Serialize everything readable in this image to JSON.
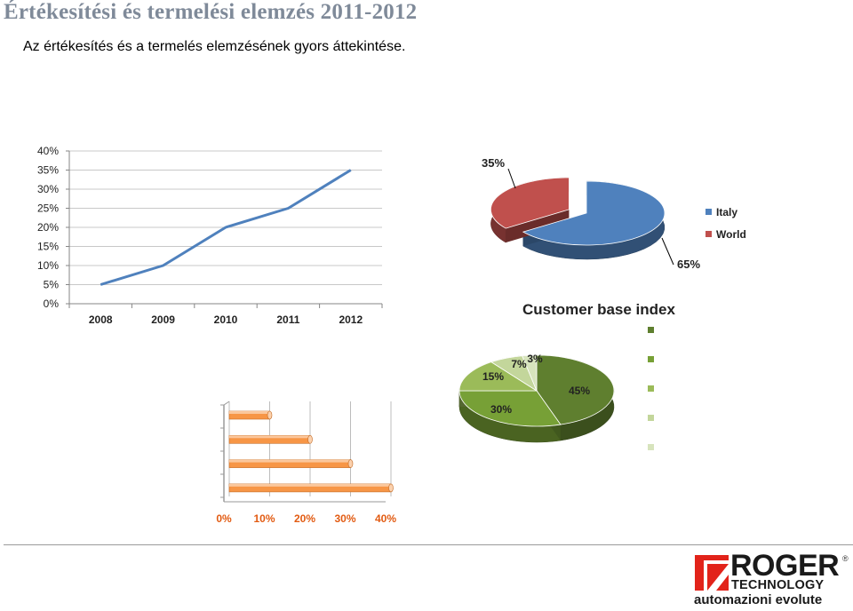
{
  "page": {
    "title": "Értékesítési és termelési elemzés 2011-2012",
    "subtitle": "Az értékesítés és a termelés elemzésének gyors áttekintése."
  },
  "logo": {
    "name": "ROGER",
    "registered": "®",
    "sub": "TECHNOLOGY",
    "tagline": "automazioni evolute",
    "colors": {
      "red": "#e2231a",
      "black": "#1a1a1a"
    }
  },
  "chart_data": [
    {
      "type": "line",
      "x": [
        "2008",
        "2009",
        "2010",
        "2011",
        "2012"
      ],
      "series": [
        {
          "values": [
            5,
            10,
            20,
            25,
            35
          ],
          "color": "#4f81bd"
        }
      ],
      "ylim": [
        0,
        40
      ],
      "yticks": [
        "0%",
        "5%",
        "10%",
        "15%",
        "20%",
        "25%",
        "30%",
        "35%",
        "40%"
      ],
      "grid": true
    },
    {
      "type": "pie",
      "labels": [
        "Italy",
        "World"
      ],
      "values": [
        65,
        35
      ],
      "data_labels": [
        "65%",
        "35%"
      ],
      "colors": [
        "#4f81bd",
        "#c0504d"
      ],
      "legend": "right",
      "style": "3d-exploded"
    },
    {
      "type": "pie",
      "title": "Customer base index",
      "values": [
        45,
        30,
        15,
        7,
        3
      ],
      "data_labels": [
        "45%",
        "30%",
        "15%",
        "7%",
        "3%"
      ],
      "colors": [
        "#5f7f2f",
        "#77a036",
        "#9bbb59",
        "#c3d69b",
        "#d7e4bd"
      ],
      "legend": "right",
      "style": "3d"
    },
    {
      "type": "bar",
      "orientation": "horizontal",
      "values": [
        10,
        20,
        30,
        40
      ],
      "xlim": [
        0,
        40
      ],
      "xticks": [
        "0%",
        "10%",
        "20%",
        "30%",
        "40%"
      ],
      "color": "#f79646",
      "tick_color": "#e25b12"
    }
  ]
}
